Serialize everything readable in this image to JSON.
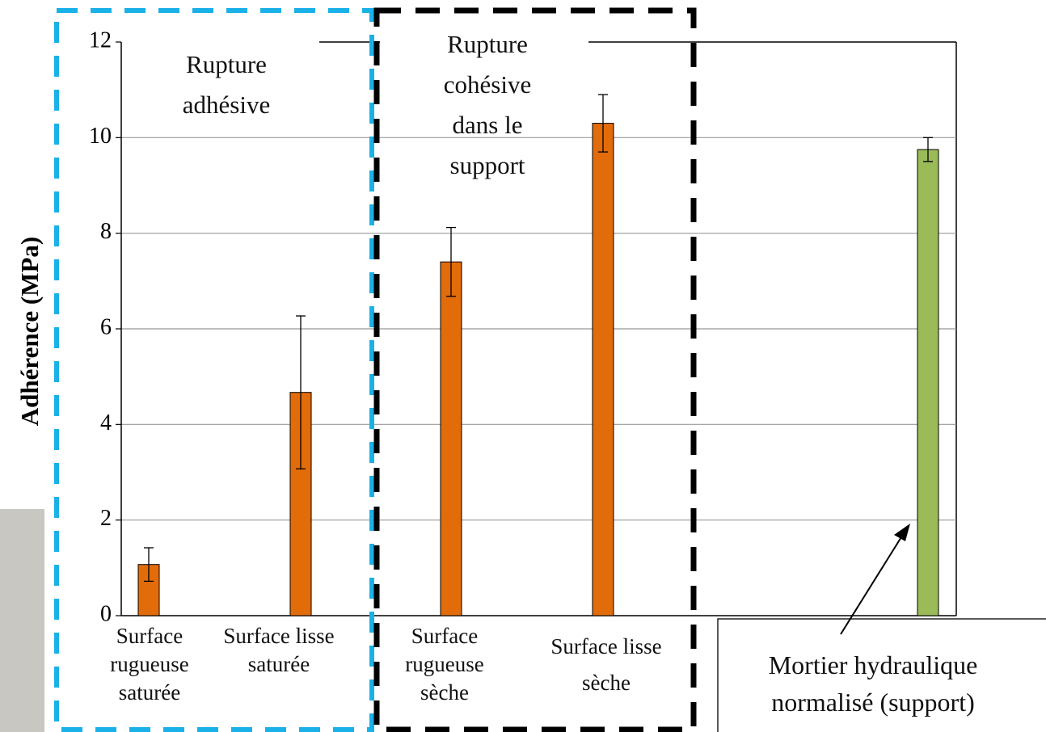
{
  "chart_data": {
    "type": "bar",
    "y_label": "Adhérence (MPa)",
    "categories": [
      "Surface rugueuse saturée",
      "Surface lisse saturée",
      "Surface rugueuse sèche",
      "Surface lisse sèche",
      "Mortier hydraulique normalisé (support)"
    ],
    "values": [
      1.07,
      4.67,
      7.4,
      10.3,
      9.75
    ],
    "errors": [
      0.35,
      1.6,
      0.72,
      0.6,
      0.25
    ],
    "colors": [
      "#e36c0a",
      "#e36c0a",
      "#e36c0a",
      "#e36c0a",
      "#9bbb59"
    ],
    "ylim": [
      0,
      12
    ],
    "yticks": [
      0,
      2,
      4,
      6,
      8,
      10,
      12
    ],
    "grid": true,
    "annotations": [
      "Rupture adhésive",
      "Rupture cohésive dans le support"
    ]
  }
}
